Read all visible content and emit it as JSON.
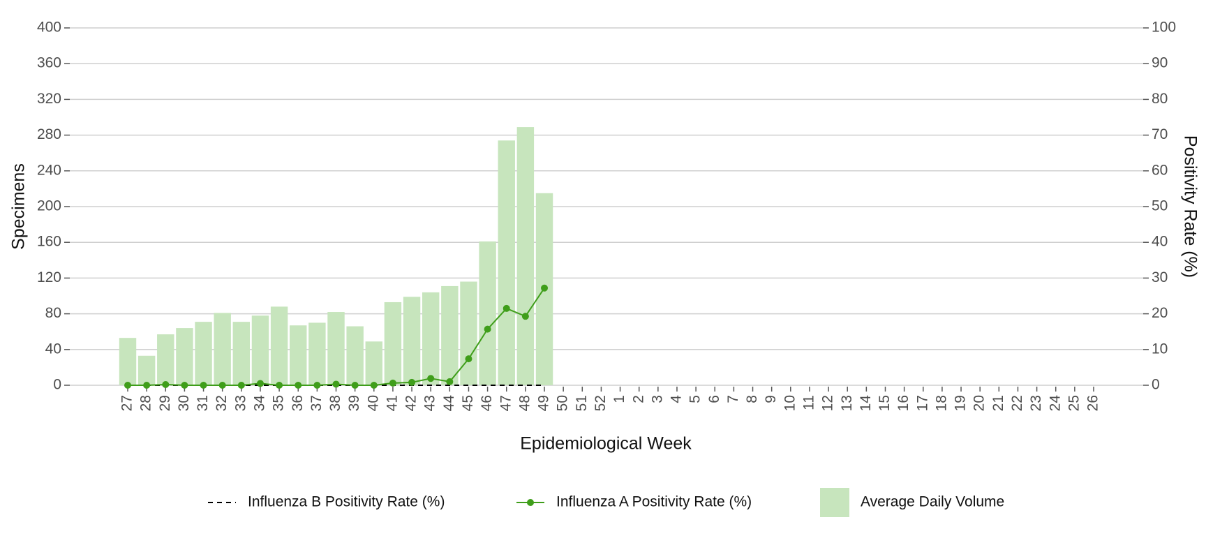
{
  "chart_data": {
    "type": "bar",
    "x_label": "Epidemiological Week",
    "y_label": "Specimens",
    "y2_label": "Positivity Rate (%)",
    "categories": [
      "27",
      "28",
      "29",
      "30",
      "31",
      "32",
      "33",
      "34",
      "35",
      "36",
      "37",
      "38",
      "39",
      "40",
      "41",
      "42",
      "43",
      "44",
      "45",
      "46",
      "47",
      "48",
      "49",
      "50",
      "51",
      "52",
      "1",
      "2",
      "3",
      "4",
      "5",
      "6",
      "7",
      "8",
      "9",
      "10",
      "11",
      "12",
      "13",
      "14",
      "15",
      "16",
      "17",
      "18",
      "19",
      "20",
      "21",
      "22",
      "23",
      "24",
      "25",
      "26"
    ],
    "series": [
      {
        "name": "Influenza B Positivity Rate (%)",
        "type": "line",
        "axis": "y2",
        "color": "#000000",
        "dashed": true,
        "values": [
          0,
          0,
          0,
          0,
          0,
          0,
          0,
          0,
          0,
          0,
          0,
          0,
          0,
          0,
          0,
          0,
          0,
          0,
          0,
          0,
          0,
          0,
          0,
          null,
          null,
          null,
          null,
          null,
          null,
          null,
          null,
          null,
          null,
          null,
          null,
          null,
          null,
          null,
          null,
          null,
          null,
          null,
          null,
          null,
          null,
          null,
          null,
          null,
          null,
          null,
          null,
          null
        ]
      },
      {
        "name": "Influenza A Positivity Rate (%)",
        "type": "line",
        "axis": "y2",
        "color": "#3f9e1a",
        "markers": true,
        "values": [
          0,
          0,
          0.2,
          0,
          0,
          0,
          0,
          0.5,
          0,
          0,
          0,
          0.3,
          0,
          0,
          0.6,
          0.8,
          1.9,
          1.0,
          7.4,
          15.7,
          21.5,
          19.3,
          27.2,
          null,
          null,
          null,
          null,
          null,
          null,
          null,
          null,
          null,
          null,
          null,
          null,
          null,
          null,
          null,
          null,
          null,
          null,
          null,
          null,
          null,
          null,
          null,
          null,
          null,
          null,
          null,
          null,
          null
        ]
      },
      {
        "name": "Average Daily Volume",
        "type": "bar",
        "axis": "y",
        "color": "#c7e5bd",
        "values": [
          53,
          33,
          57,
          64,
          71,
          81,
          71,
          78,
          88,
          67,
          70,
          82,
          66,
          49,
          93,
          99,
          104,
          111,
          116,
          161,
          274,
          289,
          215,
          null,
          null,
          null,
          null,
          null,
          null,
          null,
          null,
          null,
          null,
          null,
          null,
          null,
          null,
          null,
          null,
          null,
          null,
          null,
          null,
          null,
          null,
          null,
          null,
          null,
          null,
          null,
          null,
          null
        ]
      }
    ],
    "ylim": [
      0,
      400
    ],
    "yticks": [
      0,
      40,
      80,
      120,
      160,
      200,
      240,
      280,
      320,
      360,
      400
    ],
    "y2lim": [
      0,
      100
    ],
    "y2ticks": [
      0,
      10,
      20,
      30,
      40,
      50,
      60,
      70,
      80,
      90,
      100
    ],
    "grid": true,
    "legend": "bottom"
  }
}
